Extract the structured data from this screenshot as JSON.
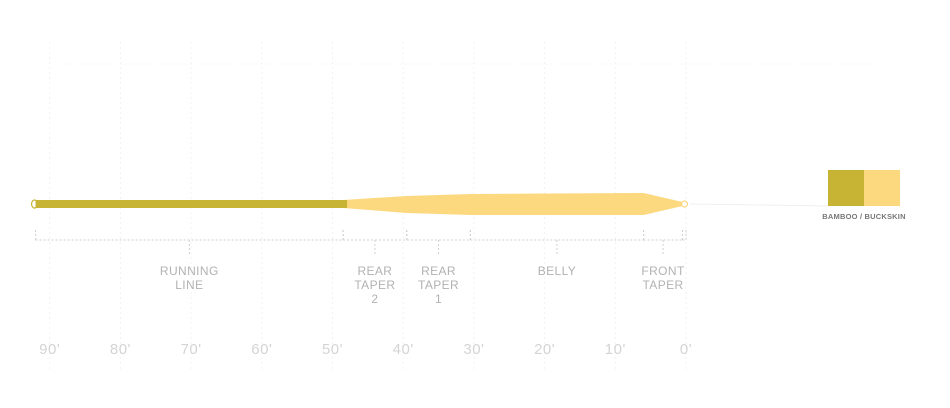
{
  "diagram": {
    "axis": {
      "unit": "ft",
      "ticks": [
        {
          "label": "90'",
          "value": 90
        },
        {
          "label": "80'",
          "value": 80
        },
        {
          "label": "70'",
          "value": 70
        },
        {
          "label": "60'",
          "value": 60
        },
        {
          "label": "50'",
          "value": 50
        },
        {
          "label": "40'",
          "value": 40
        },
        {
          "label": "30'",
          "value": 30
        },
        {
          "label": "20'",
          "value": 20
        },
        {
          "label": "10'",
          "value": 10
        },
        {
          "label": "0'",
          "value": 0
        }
      ]
    },
    "sections": [
      {
        "lines": [
          "RUNNING",
          "LINE"
        ],
        "from": 92,
        "to": 48.5
      },
      {
        "lines": [
          "REAR",
          "TAPER",
          "2"
        ],
        "from": 48.5,
        "to": 39.5
      },
      {
        "lines": [
          "REAR",
          "TAPER",
          "1"
        ],
        "from": 39.5,
        "to": 30.5
      },
      {
        "lines": [
          "BELLY"
        ],
        "from": 30.5,
        "to": 6
      },
      {
        "lines": [
          "FRONT",
          "TAPER"
        ],
        "from": 6,
        "to": 0.5
      },
      {
        "lines": [],
        "from": 0.5,
        "to": 0
      }
    ],
    "colors": {
      "running_line": "#c8b434",
      "head": "#fcd97e",
      "bamboo": "#c8b434",
      "buckskin": "#fcd97e"
    },
    "swatch": {
      "label": "BAMBOO / BUCKSKIN"
    }
  }
}
